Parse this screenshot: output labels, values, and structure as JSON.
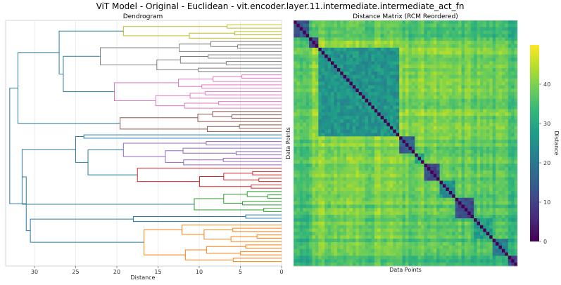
{
  "figure_title": "ViT Model - Original - Euclidean - vit.encoder.layer.11.intermediate.intermediate_act_fn",
  "chart_data": [
    {
      "type": "dendrogram",
      "title": "Dendrogram",
      "xlabel": "Distance",
      "orientation": "left",
      "xlim": [
        33.5,
        0
      ],
      "xticks": [
        30,
        25,
        20,
        15,
        10,
        5,
        0
      ],
      "n_leaves": 72,
      "grid": true,
      "clusters": [
        {
          "name": "yellow",
          "color": "#bcbd22",
          "leaves": 5,
          "merge_height": 19.2
        },
        {
          "name": "gray",
          "color": "#7f7f7f",
          "leaves": 10,
          "merge_height": 22.0
        },
        {
          "name": "pink",
          "color": "#e377c2",
          "leaves": 11,
          "merge_height": 20.3
        },
        {
          "name": "brown",
          "color": "#8c564b",
          "leaves": 7,
          "merge_height": 19.6
        },
        {
          "name": "blue",
          "color": "#1f77b4",
          "leaves": 2,
          "merge_height": 24.0
        },
        {
          "name": "purple",
          "color": "#9467bd",
          "leaves": 8,
          "merge_height": 19.2
        },
        {
          "name": "red",
          "color": "#d62728",
          "leaves": 7,
          "merge_height": 17.5
        },
        {
          "name": "green",
          "color": "#2ca02c",
          "leaves": 7,
          "merge_height": 10.6
        },
        {
          "name": "lightblue",
          "color": "#1f77b4",
          "leaves": 3,
          "merge_height": 18.0
        },
        {
          "name": "orange",
          "color": "#ff7f0e",
          "leaves": 12,
          "merge_height": 16.7
        }
      ],
      "above_threshold_color": "#2b7ba0"
    },
    {
      "type": "heatmap",
      "title": "Distance Matrix (RCM Reordered)",
      "xlabel": "Data Points",
      "ylabel": "Data Points",
      "colormap": "viridis",
      "colorbar_label": "Distance",
      "vmin": 0,
      "vmax": 50,
      "colorbar_ticks": [
        0,
        10,
        20,
        30,
        40
      ],
      "blocks": [
        {
          "start": 0,
          "end": 5,
          "within": 14,
          "to_rest": 33
        },
        {
          "start": 5,
          "end": 8,
          "within": 10,
          "to_rest": 40
        },
        {
          "start": 8,
          "end": 34,
          "within": 26,
          "to_rest": 42
        },
        {
          "start": 34,
          "end": 39,
          "within": 15,
          "to_rest": 38
        },
        {
          "start": 39,
          "end": 42,
          "within": 30,
          "to_rest": 38
        },
        {
          "start": 42,
          "end": 47,
          "within": 12,
          "to_rest": 38
        },
        {
          "start": 47,
          "end": 52,
          "within": 25,
          "to_rest": 36
        },
        {
          "start": 52,
          "end": 58,
          "within": 12,
          "to_rest": 37
        },
        {
          "start": 58,
          "end": 64,
          "within": 28,
          "to_rest": 36
        },
        {
          "start": 64,
          "end": 69,
          "within": 22,
          "to_rest": 34
        },
        {
          "start": 69,
          "end": 72,
          "within": 12,
          "to_rest": 32
        }
      ],
      "n": 72
    }
  ],
  "colors": {
    "viridis": [
      "#440154",
      "#482878",
      "#3e4989",
      "#31688e",
      "#26828e",
      "#1f9e89",
      "#35b779",
      "#6ece58",
      "#b5de2b",
      "#fde725"
    ]
  }
}
